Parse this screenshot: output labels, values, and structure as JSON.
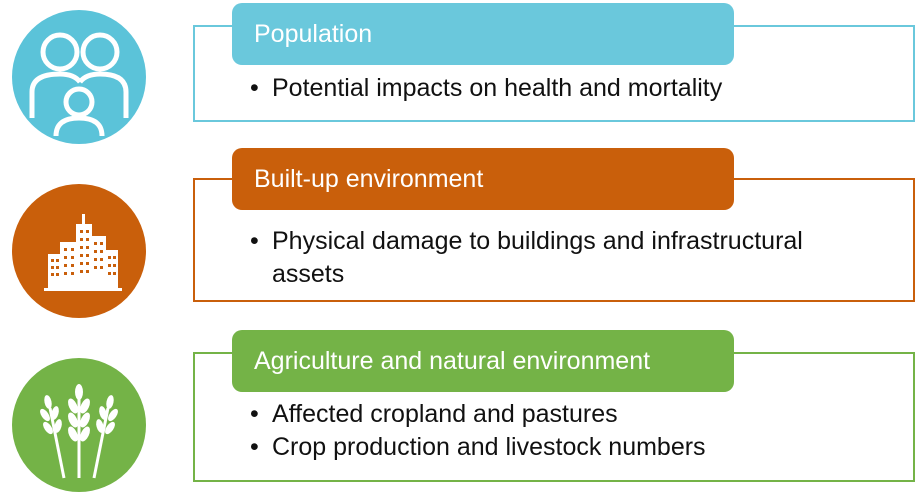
{
  "categories": [
    {
      "id": "population",
      "icon": "people-icon",
      "color": "#6ac8dc",
      "title": "Population",
      "items": [
        "Potential impacts on health and mortality"
      ]
    },
    {
      "id": "built-up",
      "icon": "buildings-icon",
      "color": "#c95f0b",
      "title": "Built-up environment",
      "items": [
        "Physical damage to buildings and infrastructural assets"
      ]
    },
    {
      "id": "agriculture",
      "icon": "wheat-icon",
      "color": "#74b347",
      "title": "Agriculture and natural environment",
      "items": [
        "Affected cropland and pastures",
        "Crop production and livestock numbers"
      ]
    }
  ]
}
